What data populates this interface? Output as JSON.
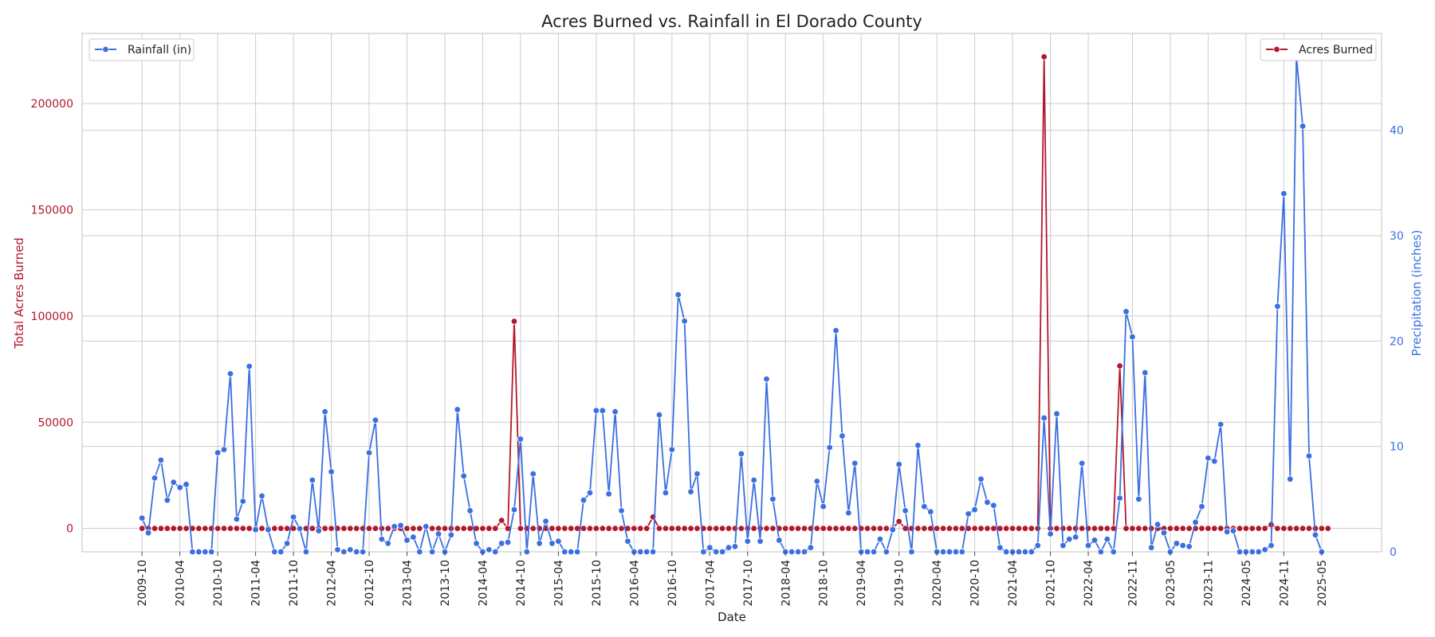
{
  "chart_data": {
    "type": "line",
    "title": "Acres Burned vs. Rainfall in El Dorado County",
    "xlabel": "Date",
    "x_ticks": [
      "2009-10",
      "2010-04",
      "2010-10",
      "2011-04",
      "2011-10",
      "2012-04",
      "2012-10",
      "2013-04",
      "2013-10",
      "2014-04",
      "2014-10",
      "2015-04",
      "2015-10",
      "2016-04",
      "2016-10",
      "2017-04",
      "2017-10",
      "2018-04",
      "2018-10",
      "2019-04",
      "2019-10",
      "2020-04",
      "2020-10",
      "2021-04",
      "2021-10",
      "2022-04",
      "2022-11",
      "2023-05",
      "2023-11",
      "2024-05",
      "2024-11",
      "2025-05"
    ],
    "x_tick_index": [
      0,
      6,
      12,
      18,
      24,
      30,
      36,
      42,
      48,
      54,
      60,
      66,
      72,
      78,
      84,
      90,
      96,
      102,
      108,
      114,
      120,
      126,
      132,
      138,
      144,
      150,
      157,
      163,
      169,
      175,
      181,
      187
    ],
    "x_range": [
      -9.5,
      196.5
    ],
    "grid": true,
    "left_axis": {
      "label": "Total Acres Burned",
      "color": "#b2182b",
      "range": [
        -11000,
        233000
      ],
      "ticks": [
        0,
        50000,
        100000,
        150000,
        200000
      ]
    },
    "right_axis": {
      "label": "Precipitation (inches)",
      "color": "#3b6fe0",
      "range": [
        0,
        49.2
      ],
      "ticks": [
        0,
        10,
        20,
        30,
        40
      ]
    },
    "series": [
      {
        "name": "Acres Burned",
        "axis": "left",
        "color": "#b2182b",
        "legend_position": "upper right",
        "values": [
          0,
          0,
          0,
          0,
          0,
          0,
          0,
          0,
          0,
          0,
          0,
          0,
          0,
          0,
          0,
          0,
          0,
          0,
          0,
          0,
          0,
          0,
          0,
          0,
          0,
          0,
          0,
          0,
          0,
          0,
          0,
          0,
          0,
          0,
          0,
          0,
          0,
          0,
          0,
          0,
          0,
          0,
          0,
          0,
          0,
          0,
          0,
          0,
          0,
          0,
          0,
          0,
          0,
          0,
          0,
          0,
          0,
          0,
          0,
          0,
          0,
          0,
          0,
          0,
          0,
          0,
          0,
          0,
          0,
          0,
          0,
          0,
          0,
          0,
          0,
          0,
          0,
          0,
          0,
          0,
          0,
          0,
          0,
          0,
          0,
          0,
          0,
          0,
          0,
          0,
          0,
          0,
          0,
          0,
          0,
          0,
          0,
          0,
          0,
          0,
          0,
          0,
          0,
          0,
          0,
          0,
          0,
          0,
          0,
          0,
          0,
          0,
          0,
          0,
          0,
          0,
          0,
          0,
          0,
          0,
          0,
          0,
          0,
          0,
          0,
          0,
          0,
          0,
          0,
          0,
          0,
          0,
          0,
          0,
          0,
          0,
          0,
          0,
          0,
          0,
          0,
          0,
          0,
          0,
          0,
          0,
          0,
          0,
          0,
          0,
          0,
          0,
          0,
          0,
          0,
          0,
          0,
          0,
          0,
          0,
          0,
          0,
          0,
          0,
          0,
          0,
          0,
          0,
          0,
          0,
          0,
          0,
          0,
          0,
          0,
          0,
          0,
          0,
          0,
          0,
          0,
          0,
          0,
          0,
          0,
          0,
          0,
          0,
          0
        ],
        "nonzero": [
          [
            45,
            500
          ],
          [
            57,
            3800
          ],
          [
            59,
            97500
          ],
          [
            81,
            5400
          ],
          [
            120,
            3300
          ],
          [
            143,
            222000
          ],
          [
            155,
            76500
          ],
          [
            179,
            1800
          ]
        ]
      },
      {
        "name": "Rainfall (in)",
        "axis": "right",
        "color": "#3b6fe0",
        "legend_position": "upper left",
        "values": [
          3.2,
          1.8,
          7.0,
          8.7,
          4.9,
          6.6,
          6.1,
          6.4,
          0,
          0,
          0,
          0,
          9.4,
          9.7,
          16.9,
          3.1,
          4.8,
          17.6,
          2.1,
          5.3,
          2.1,
          0,
          0,
          0.8,
          3.3,
          2.2,
          0,
          6.8,
          2.0,
          13.3,
          7.6,
          0.2,
          0,
          0.2,
          0,
          0,
          9.4,
          12.5,
          1.2,
          0.8,
          2.4,
          2.5,
          1.1,
          1.4,
          0,
          2.4,
          0,
          1.7,
          0,
          1.6,
          13.5,
          7.2,
          3.9,
          0.8,
          0,
          0.2,
          0,
          0.8,
          0.9,
          4.0,
          10.7,
          0,
          7.4,
          0.8,
          2.9,
          0.8,
          1.0,
          0,
          0,
          0,
          4.9,
          5.6,
          13.4,
          13.4,
          5.5,
          13.3,
          3.9,
          1.0,
          0,
          0,
          0,
          0,
          13.0,
          5.6,
          9.7,
          24.4,
          21.9,
          5.7,
          7.4,
          0,
          0.4,
          0,
          0,
          0.4,
          0.5,
          9.3,
          1.0,
          6.8,
          1.0,
          16.4,
          5.0,
          1.1,
          0,
          0,
          0,
          0,
          0.4,
          6.7,
          4.3,
          9.9,
          21.0,
          11.0,
          3.7,
          8.4,
          0,
          0,
          0,
          1.2,
          0,
          2.1,
          8.3,
          3.9,
          0,
          10.1,
          4.3,
          3.8,
          0,
          0,
          0,
          0,
          0,
          3.6,
          4.0,
          6.9,
          4.7,
          4.4,
          0.4,
          0,
          0,
          0,
          0,
          0,
          0.6,
          12.7,
          1.7,
          13.1,
          0.6,
          1.2,
          1.4,
          8.4,
          0.6,
          1.1,
          0,
          1.2,
          0,
          5.1,
          22.8,
          20.4,
          5.0,
          17.0,
          0.4,
          2.6,
          1.8,
          0,
          0.8,
          0.6,
          0.5,
          2.8,
          4.3,
          8.9,
          8.6,
          12.1,
          1.9,
          2.0,
          0,
          0,
          0,
          0,
          0.2,
          0.6,
          23.3,
          34.0,
          6.9,
          47.0,
          40.4,
          9.1,
          1.6,
          0
        ]
      }
    ]
  }
}
